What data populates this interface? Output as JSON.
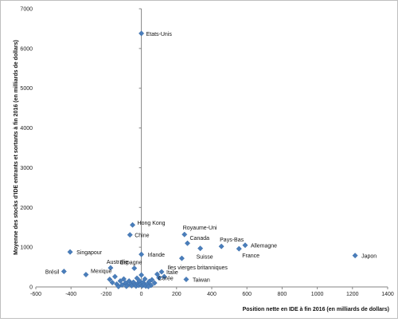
{
  "chart_data": {
    "type": "scatter",
    "title": "",
    "xlabel": "Position nette en IDE à fin 2016 (en milliards de dollars)",
    "ylabel": "Moyenne des stocks d'IDE entrants et sortants à fin 2016 (en milliards de dollars)",
    "xlim": [
      -600,
      1400
    ],
    "ylim": [
      0,
      7000
    ],
    "grid": false,
    "legend": "none",
    "marker_color": "#4a7ebb",
    "axis_color": "#868686",
    "x_ticks": [
      "-600",
      "-400",
      "-200",
      "0",
      "200",
      "400",
      "600",
      "800",
      "1000",
      "1200",
      "1400"
    ],
    "y_ticks": [
      "0",
      "1000",
      "2000",
      "3000",
      "4000",
      "5000",
      "6000",
      "7000"
    ],
    "labeled_points": [
      {
        "label": "Etats-Unis",
        "x": 0,
        "y": 6380
      },
      {
        "label": "Hong Kong",
        "x": -50,
        "y": 1560
      },
      {
        "label": "Chine",
        "x": -65,
        "y": 1310
      },
      {
        "label": "Royaume-Uni",
        "x": 245,
        "y": 1320
      },
      {
        "label": "Canada",
        "x": 262,
        "y": 1100
      },
      {
        "label": "Pays-Bas",
        "x": 455,
        "y": 1020
      },
      {
        "label": "Allemagne",
        "x": 590,
        "y": 1050
      },
      {
        "label": "Suisse",
        "x": 335,
        "y": 970
      },
      {
        "label": "France",
        "x": 555,
        "y": 960
      },
      {
        "label": "Japon",
        "x": 1215,
        "y": 790
      },
      {
        "label": "Singapour",
        "x": -405,
        "y": 880
      },
      {
        "label": "Irlande",
        "x": 0,
        "y": 820
      },
      {
        "label": "Australie",
        "x": -175,
        "y": 480
      },
      {
        "label": "Espagne",
        "x": -40,
        "y": 470
      },
      {
        "label": "Iles vierges britanniques",
        "x": 230,
        "y": 720
      },
      {
        "label": "Mexique",
        "x": -315,
        "y": 310
      },
      {
        "label": "Brésil",
        "x": -440,
        "y": 390
      },
      {
        "label": "Italie",
        "x": 115,
        "y": 380
      },
      {
        "label": "Corée",
        "x": 100,
        "y": 230
      },
      {
        "label": "Taiwan",
        "x": 255,
        "y": 190
      }
    ],
    "unlabeled_points": [
      {
        "x": -180,
        "y": 190
      },
      {
        "x": -165,
        "y": 110
      },
      {
        "x": -150,
        "y": 260
      },
      {
        "x": -140,
        "y": 70
      },
      {
        "x": -120,
        "y": 150
      },
      {
        "x": -110,
        "y": 50
      },
      {
        "x": -100,
        "y": 200
      },
      {
        "x": -90,
        "y": 100
      },
      {
        "x": -80,
        "y": 40
      },
      {
        "x": -70,
        "y": 150
      },
      {
        "x": -60,
        "y": 80
      },
      {
        "x": -55,
        "y": 30
      },
      {
        "x": -45,
        "y": 120
      },
      {
        "x": -35,
        "y": 60
      },
      {
        "x": -30,
        "y": 20
      },
      {
        "x": -25,
        "y": 220
      },
      {
        "x": -20,
        "y": 90
      },
      {
        "x": -15,
        "y": 40
      },
      {
        "x": -10,
        "y": 150
      },
      {
        "x": -5,
        "y": 60
      },
      {
        "x": 5,
        "y": 30
      },
      {
        "x": 10,
        "y": 110
      },
      {
        "x": 15,
        "y": 50
      },
      {
        "x": 20,
        "y": 200
      },
      {
        "x": 25,
        "y": 20
      },
      {
        "x": 35,
        "y": 80
      },
      {
        "x": 45,
        "y": 140
      },
      {
        "x": 55,
        "y": 40
      },
      {
        "x": 60,
        "y": 180
      },
      {
        "x": 75,
        "y": 100
      },
      {
        "x": 90,
        "y": 320
      },
      {
        "x": 130,
        "y": 260
      },
      {
        "x": -130,
        "y": 10
      },
      {
        "x": -85,
        "y": 15
      },
      {
        "x": 40,
        "y": 10
      },
      {
        "x": 0,
        "y": 300
      }
    ]
  }
}
